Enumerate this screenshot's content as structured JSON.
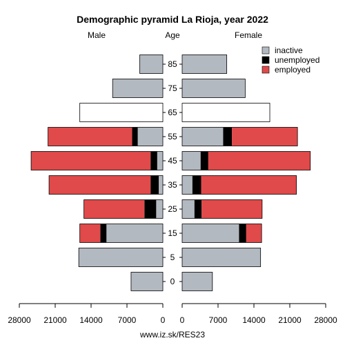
{
  "chart_data": {
    "type": "bar",
    "title": "Demographic pyramid La Rioja, year 2022",
    "left_label": "Male",
    "center_label": "Age",
    "right_label": "Female",
    "source": "www.iz.sk/RES23",
    "age_groups": [
      "0",
      "5",
      "15",
      "25",
      "35",
      "45",
      "55",
      "65",
      "75",
      "85"
    ],
    "xlim": [
      0,
      28000
    ],
    "x_ticks_male": [
      "28000",
      "21000",
      "14000",
      "7000",
      "0"
    ],
    "x_ticks_female": [
      "0",
      "7000",
      "14000",
      "21000",
      "28000"
    ],
    "x_tick_values": [
      0,
      7000,
      14000,
      21000,
      28000
    ],
    "legend": [
      {
        "key": "inactive",
        "label": "inactive",
        "color": "#b3b9c0"
      },
      {
        "key": "unemployed",
        "label": "unemployed",
        "color": "#000000"
      },
      {
        "key": "employed",
        "label": "employed",
        "color": "#e04a4a"
      }
    ],
    "colors": {
      "inactive": "#b3b9c0",
      "unemployed": "#000000",
      "employed": "#e04a4a",
      "total_only": "#ffffff"
    },
    "male": {
      "inactive": [
        6200,
        16400,
        11000,
        1300,
        800,
        1100,
        4900,
        null,
        9800,
        4500
      ],
      "unemployed": [
        0,
        0,
        1200,
        2300,
        1600,
        1300,
        1100,
        null,
        0,
        0
      ],
      "employed": [
        0,
        0,
        4000,
        11800,
        19800,
        23300,
        16400,
        null,
        0,
        0
      ],
      "total": [
        6200,
        16400,
        16200,
        15400,
        22200,
        25700,
        22400,
        16200,
        9800,
        4500
      ]
    },
    "female": {
      "inactive": [
        5900,
        15300,
        11100,
        2400,
        2000,
        3600,
        8000,
        null,
        12300,
        8700
      ],
      "unemployed": [
        0,
        0,
        1400,
        1400,
        1700,
        1500,
        1700,
        null,
        0,
        0
      ],
      "employed": [
        0,
        0,
        3000,
        11800,
        18600,
        19900,
        12800,
        null,
        0,
        0
      ],
      "total": [
        5900,
        15300,
        15500,
        15600,
        22300,
        25000,
        22500,
        17100,
        12300,
        8700
      ]
    }
  }
}
